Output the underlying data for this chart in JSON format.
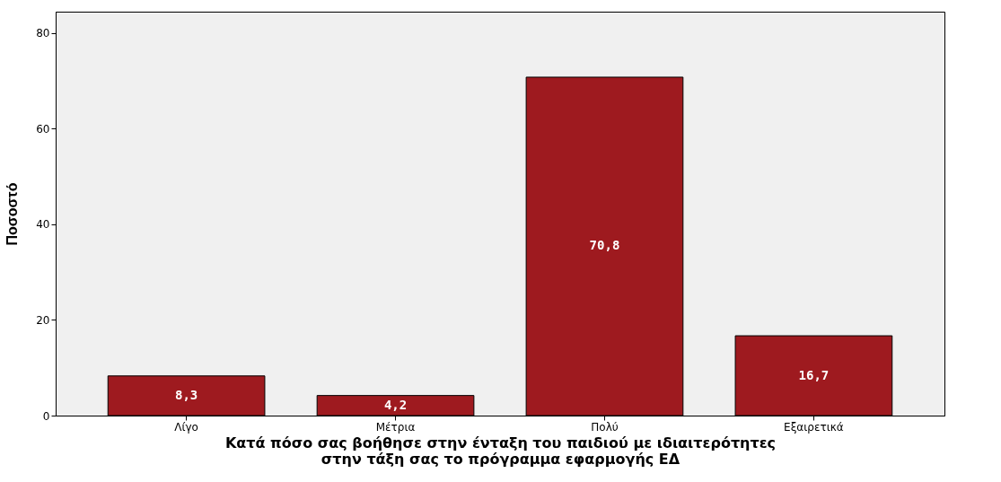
{
  "chart_data": {
    "type": "bar",
    "xlabel": "Κατά πόσο σας βοήθησε στην ένταξη του παιδιού με ιδιαιτερότητες στην τάξη σας το πρόγραμμα εφαρμογής ΕΔ",
    "ylabel": "Ποσοστό",
    "categories": [
      "Λίγο",
      "Μέτρια",
      "Πολύ",
      "Εξαιρετικά"
    ],
    "values": [
      8.3,
      4.2,
      70.8,
      16.7
    ],
    "value_labels": [
      "8,3",
      "4,2",
      "70,8",
      "16,7"
    ],
    "color": "#9e1a1f",
    "ylim": [
      0,
      84.5
    ],
    "yticks": [
      0,
      20,
      40,
      60,
      80
    ],
    "grid": false
  }
}
